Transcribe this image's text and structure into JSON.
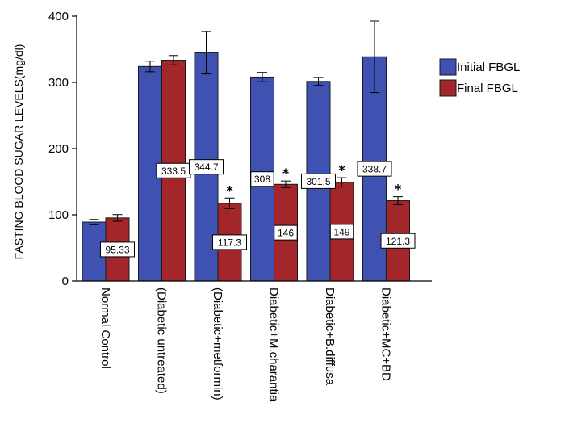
{
  "chart_data": {
    "type": "bar",
    "title": "",
    "xlabel": "",
    "ylabel": "FASTING BLOOD SUGAR LEVELS(mg/dl)",
    "ylim": [
      0,
      400
    ],
    "yticks": [
      0,
      100,
      200,
      300,
      400
    ],
    "grid": false,
    "legend_position": "right",
    "categories": [
      "Normal Control",
      "(Diabetic untreated)",
      "(Diabetic+metformin)",
      "Diabetic+M.charantia",
      "Diabetic+B.diffusa",
      "Diabetic+MC+BD"
    ],
    "series": [
      {
        "name": "Initial FBGL",
        "color": "#3f51b1",
        "values": [
          89,
          324,
          344.7,
          308,
          301.5,
          338.7
        ],
        "error": [
          4,
          8,
          32,
          7,
          6,
          54
        ],
        "labels": [
          "",
          "",
          "344.7",
          "308",
          "301.5",
          "338.7"
        ],
        "stars": [
          false,
          false,
          false,
          false,
          false,
          false
        ]
      },
      {
        "name": "Final FBGL",
        "color": "#a3262a",
        "values": [
          95.33,
          333.5,
          117.3,
          146,
          149,
          121.3
        ],
        "error": [
          5,
          7,
          8,
          5,
          7,
          6
        ],
        "labels": [
          "95.33",
          "333.5",
          "117.3",
          "146",
          "149",
          "121.3"
        ],
        "stars": [
          false,
          false,
          true,
          true,
          true,
          true
        ]
      }
    ]
  }
}
